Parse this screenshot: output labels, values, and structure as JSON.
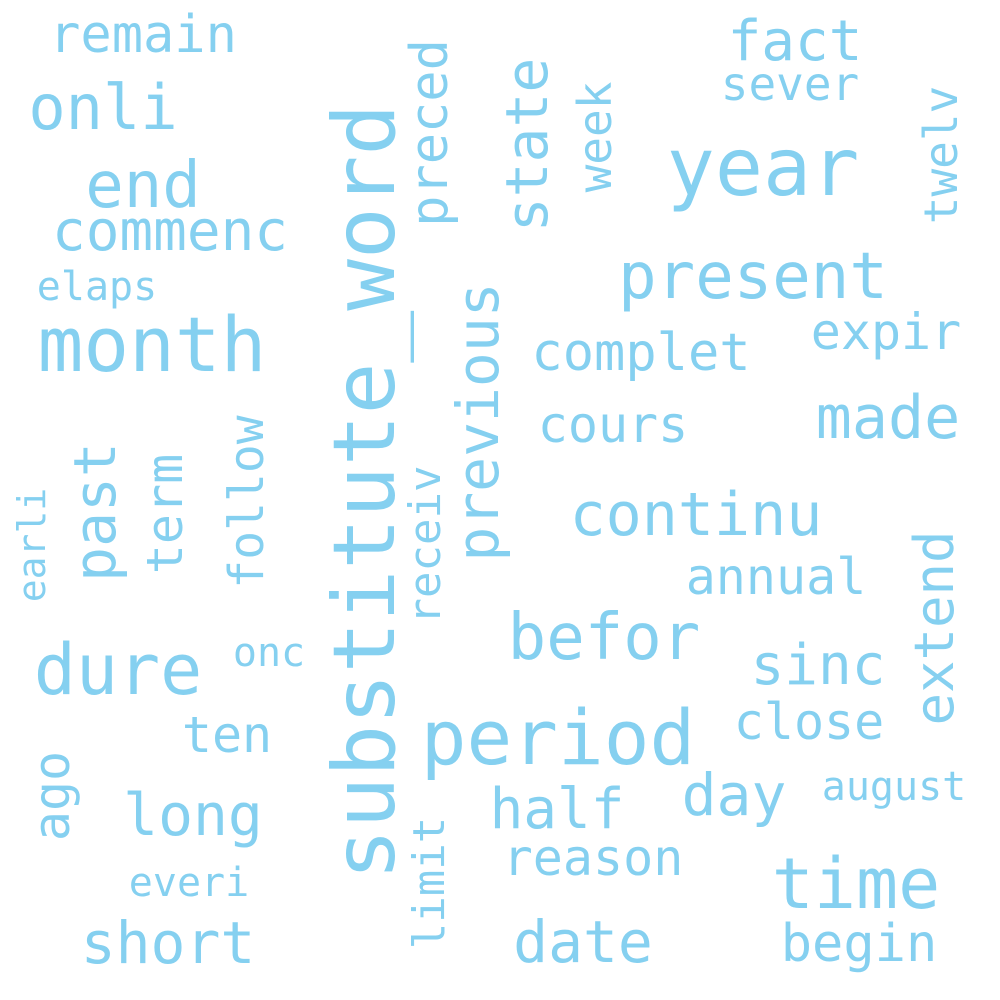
{
  "palette": {
    "word_color": "#85d0f0",
    "background": "#ffffff"
  },
  "words": [
    "substitute_word",
    "year",
    "month",
    "period",
    "dure",
    "time",
    "present",
    "befor",
    "end",
    "onli",
    "continu",
    "made",
    "previous",
    "commenc",
    "state",
    "date",
    "short",
    "long",
    "past",
    "half",
    "complet",
    "day",
    "sinc",
    "extend",
    "begin",
    "preced",
    "reason",
    "fact",
    "remain",
    "cours",
    "annual",
    "close",
    "term",
    "follow",
    "ago",
    "expir",
    "limit",
    "ten",
    "week",
    "sever",
    "twelv",
    "receiv",
    "elaps",
    "everi",
    "onc",
    "august",
    "earli"
  ]
}
